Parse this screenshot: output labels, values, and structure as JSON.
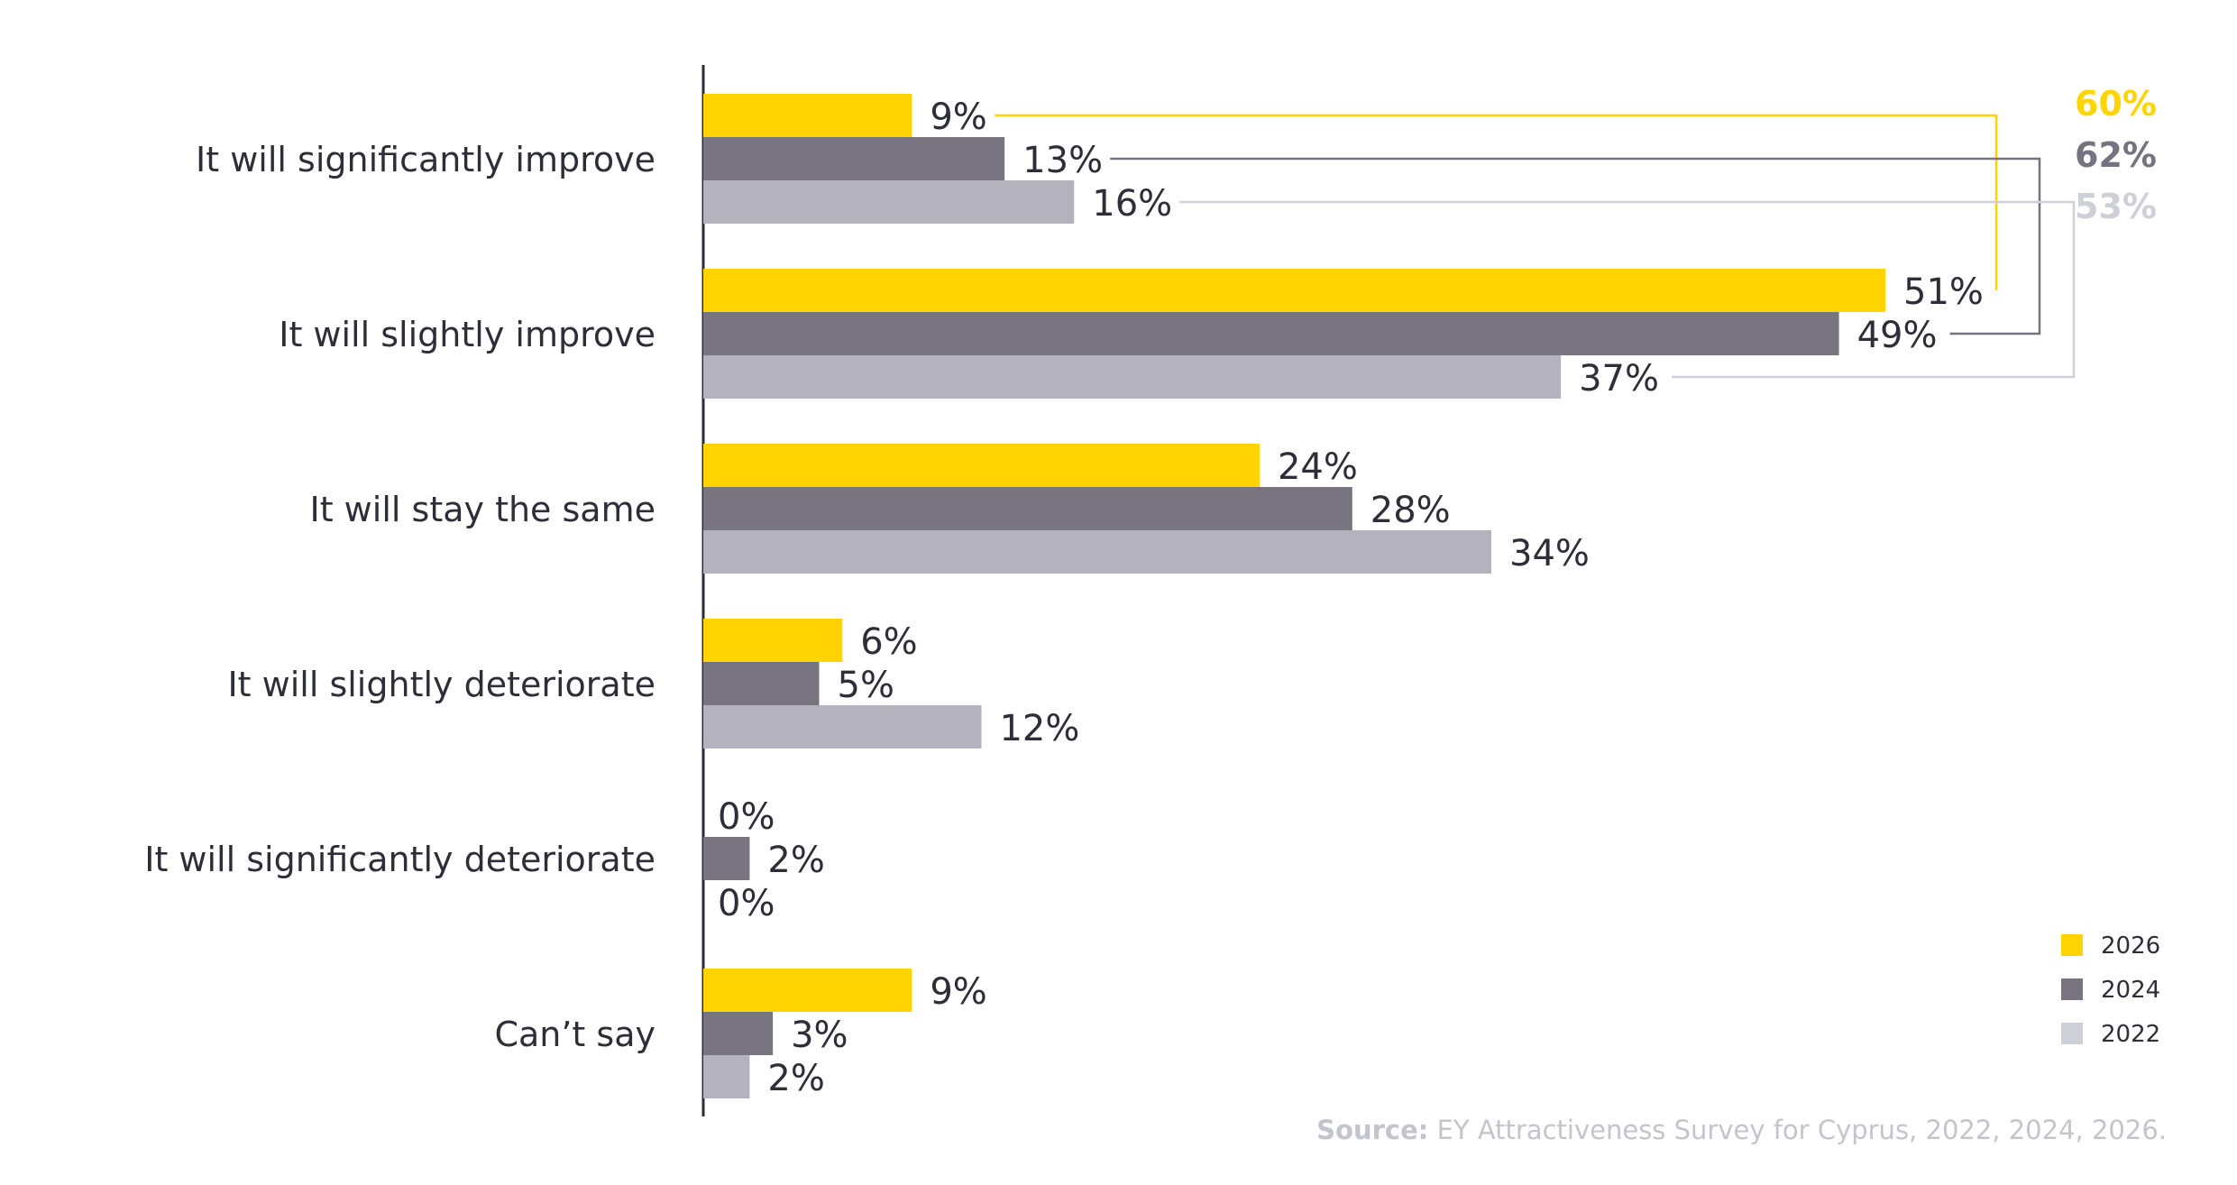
{
  "chart_data": {
    "type": "bar",
    "orientation": "horizontal",
    "categories": [
      "It will significantly improve",
      "It will slightly improve",
      "It will stay the same",
      "It will slightly deteriorate",
      "It will significantly deteriorate",
      "Can’t say"
    ],
    "series": [
      {
        "name": "2026",
        "color": "#ffd400",
        "values": [
          9,
          51,
          24,
          6,
          0,
          9
        ],
        "labels": [
          "9%",
          "51%",
          "24%",
          "6%",
          "0%",
          "9%"
        ]
      },
      {
        "name": "2024",
        "color": "#787580",
        "values": [
          13,
          49,
          28,
          5,
          2,
          3
        ],
        "labels": [
          "13%",
          "49%",
          "28%",
          "5%",
          "2%",
          "3%"
        ]
      },
      {
        "name": "2022",
        "color": "#b4b2bd",
        "values": [
          16,
          37,
          34,
          12,
          0,
          2
        ],
        "labels": [
          "16%",
          "37%",
          "34%",
          "12%",
          "0%",
          "2%"
        ]
      }
    ],
    "improve_totals": [
      {
        "series": "2026",
        "label": "60%",
        "color": "#ffd400"
      },
      {
        "series": "2024",
        "label": "62%",
        "color": "#747480"
      },
      {
        "series": "2022",
        "label": "53%",
        "color": "#cfcfd8"
      }
    ],
    "xlim": [
      0,
      51
    ],
    "legend_position": "bottom-right",
    "source_bold": "Source:",
    "source_text": " EY Attractiveness Survey for Cyprus, 2022, 2024, 2026."
  }
}
